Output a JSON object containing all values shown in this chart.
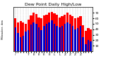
{
  "title": "Dew Point Daily High/Low",
  "background_color": "#ffffff",
  "ylim": [
    0,
    80
  ],
  "yticks": [
    10,
    20,
    30,
    40,
    50,
    60,
    70
  ],
  "high_color": "#ff0000",
  "low_color": "#0000cc",
  "highs": [
    60,
    52,
    55,
    52,
    50,
    57,
    65,
    70,
    68,
    62,
    60,
    65,
    67,
    70,
    72,
    69,
    67,
    62,
    64,
    67,
    70,
    67,
    64,
    60,
    62,
    64,
    47,
    37,
    42,
    40
  ],
  "lows": [
    43,
    33,
    26,
    28,
    36,
    38,
    48,
    53,
    50,
    43,
    38,
    46,
    50,
    53,
    56,
    50,
    46,
    43,
    46,
    50,
    53,
    50,
    46,
    40,
    42,
    46,
    26,
    13,
    20,
    18
  ],
  "n": 30,
  "bar_width": 0.42,
  "title_fontsize": 4.5,
  "tick_fontsize": 3.2,
  "ytick_fontsize": 3.2,
  "left_label": "Milwaukee, dew",
  "grid_color": "#aaaaaa",
  "xlabels": [
    "/",
    "",
    "",
    "",
    "",
    "7",
    "",
    "E",
    "",
    "E",
    "",
    "E",
    "",
    "E",
    "",
    "L",
    "",
    "L",
    "",
    "Z",
    "",
    "Z",
    "",
    "Z",
    "",
    "Z",
    "",
    "",
    "",
    ""
  ]
}
